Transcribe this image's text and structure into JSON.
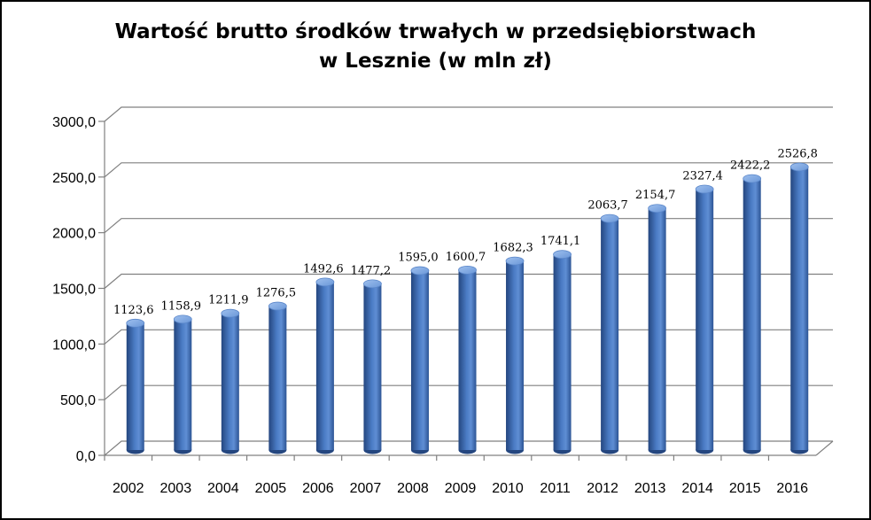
{
  "chart_data": {
    "type": "bar",
    "title_lines": [
      "Wartość brutto środków trwałych w przedsiębiorstwach",
      "w Lesznie (w mln zł)"
    ],
    "categories": [
      "2002",
      "2003",
      "2004",
      "2005",
      "2006",
      "2007",
      "2008",
      "2009",
      "2010",
      "2011",
      "2012",
      "2013",
      "2014",
      "2015",
      "2016"
    ],
    "values": [
      1123.6,
      1158.9,
      1211.9,
      1276.5,
      1492.6,
      1477.2,
      1595.0,
      1600.7,
      1682.3,
      1741.1,
      2063.7,
      2154.7,
      2327.4,
      2422.2,
      2526.8
    ],
    "value_labels": [
      "1123,6",
      "1158,9",
      "1211,9",
      "1276,5",
      "1492,6",
      "1477,2",
      "1595,0",
      "1600,7",
      "1682,3",
      "1741,1",
      "2063,7",
      "2154,7",
      "2327,4",
      "2422,2",
      "2526,8"
    ],
    "y_ticks": [
      0,
      500,
      1000,
      1500,
      2000,
      2500,
      3000
    ],
    "y_tick_labels": [
      "0,0",
      "500,0",
      "1000,0",
      "1500,0",
      "2000,0",
      "2500,0",
      "3000,0"
    ],
    "ylim": [
      0,
      3000
    ],
    "xlabel": "",
    "ylabel": "",
    "grid": true,
    "legend": "none",
    "bar_color": "#4a7bc4",
    "bar_dark": "#24467f",
    "bar_light": "#8fb3e6"
  }
}
